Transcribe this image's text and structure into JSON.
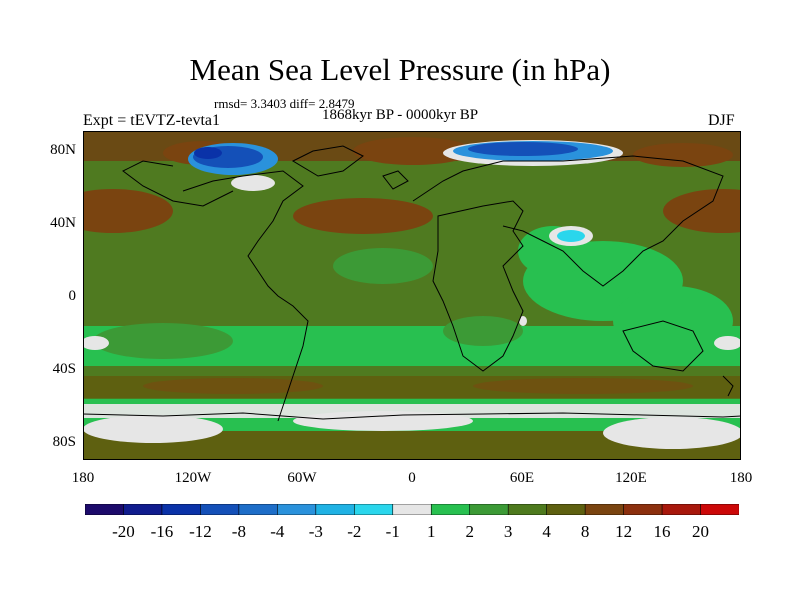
{
  "title": "Mean Sea Level Pressure (in hPa)",
  "stats": "rmsd= 3.3403 diff= 2.8479",
  "period": "1868kyr BP - 0000kyr BP",
  "experiment": "Expt = tEVTZ-tevta1",
  "season": "DJF",
  "lat_ticks": [
    "80N",
    "40N",
    "0",
    "40S",
    "80S"
  ],
  "lon_ticks": [
    "180",
    "120W",
    "60W",
    "0",
    "60E",
    "120E",
    "180"
  ],
  "colorbar": {
    "colors": [
      "#1c0a6b",
      "#101c8e",
      "#0a32a8",
      "#1450b8",
      "#1e6ec8",
      "#2a92dc",
      "#20b2e4",
      "#2ad6ec",
      "#e6e6e6",
      "#28c050",
      "#3c9a36",
      "#4e7a1e",
      "#5e6010",
      "#7a4410",
      "#8c300e",
      "#a8180c",
      "#cc0808"
    ],
    "labels": [
      "-20",
      "-16",
      "-12",
      "-8",
      "-4",
      "-3",
      "-2",
      "-1",
      "1",
      "2",
      "3",
      "4",
      "8",
      "12",
      "16",
      "20"
    ]
  },
  "colors": {
    "field_base": "#4f7a20",
    "low_anomaly": "#1e6ec8",
    "high_anomaly": "#8c300e",
    "near_zero": "#e6e6e6",
    "light_green": "#28c050"
  }
}
